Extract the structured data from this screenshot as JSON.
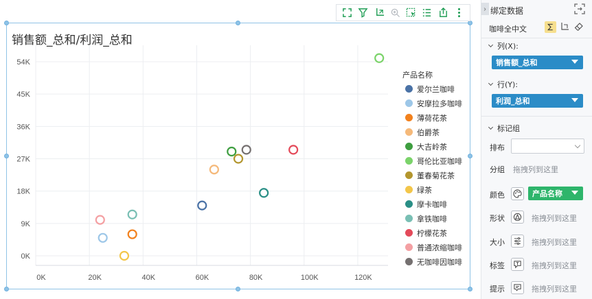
{
  "toolbar": {
    "icons": [
      "expand-icon",
      "filter-icon",
      "axis-swap-icon",
      "zoom-icon",
      "select-icon",
      "list-icon",
      "export-icon",
      "more-icon"
    ]
  },
  "chart_data": {
    "type": "scatter",
    "title": "销售额_总和/利润_总和",
    "xlabel": "",
    "ylabel": "",
    "xlim": [
      0,
      130000
    ],
    "ylim": [
      0,
      54000
    ],
    "x_ticks": [
      "0K",
      "20K",
      "40K",
      "60K",
      "80K",
      "100K",
      "120K"
    ],
    "y_ticks": [
      "0K",
      "9K",
      "18K",
      "27K",
      "36K",
      "45K",
      "54K"
    ],
    "legend_title": "产品名称",
    "legend_position": "right",
    "grid": true,
    "series": [
      {
        "name": "爱尔兰咖啡",
        "color": "#4a72a6",
        "points": [
          [
            62000,
            14000
          ]
        ]
      },
      {
        "name": "安摩拉多咖啡",
        "color": "#9dc7e8",
        "points": [
          [
            25000,
            5000
          ]
        ]
      },
      {
        "name": "薄荷花茶",
        "color": "#f2811d",
        "points": [
          [
            36000,
            6000
          ]
        ]
      },
      {
        "name": "伯爵茶",
        "color": "#f5b97a",
        "points": [
          [
            66500,
            24000
          ]
        ]
      },
      {
        "name": "大吉岭茶",
        "color": "#3e9e40",
        "points": [
          [
            73000,
            29000
          ]
        ]
      },
      {
        "name": "哥伦比亚咖啡",
        "color": "#7bd36a",
        "points": [
          [
            128000,
            55000
          ]
        ]
      },
      {
        "name": "董春菊花茶",
        "color": "#b3962e",
        "points": [
          [
            75500,
            27000
          ]
        ]
      },
      {
        "name": "绿茶",
        "color": "#f3c64a",
        "points": [
          [
            33000,
            0
          ]
        ]
      },
      {
        "name": "摩卡咖啡",
        "color": "#2a8f86",
        "points": [
          [
            85000,
            17500
          ]
        ]
      },
      {
        "name": "拿铁咖啡",
        "color": "#79bfb4",
        "points": [
          [
            36000,
            11500
          ]
        ]
      },
      {
        "name": "柠檬花茶",
        "color": "#e44a5a",
        "points": [
          [
            96000,
            29500
          ]
        ]
      },
      {
        "name": "普通浓缩咖啡",
        "color": "#f4a0a3",
        "points": [
          [
            24000,
            10000
          ]
        ]
      },
      {
        "name": "无咖啡因咖啡",
        "color": "#757070",
        "points": [
          [
            78500,
            29500
          ]
        ]
      }
    ]
  },
  "panel": {
    "header": "绑定数据",
    "dataset": "咖啡全中文",
    "columns_label": "列(X):",
    "columns_field": "销售额_总和",
    "rows_label": "行(Y):",
    "rows_field": "利润_总和",
    "marks_label": "标记组",
    "layout_label": "排布",
    "group_label": "分组",
    "group_placeholder": "拖拽列到这里",
    "color_label": "颜色",
    "color_field": "产品名称",
    "shape_label": "形状",
    "shape_placeholder": "拖拽列到这里",
    "size_label": "大小",
    "size_placeholder": "拖拽列到这里",
    "tag_label": "标签",
    "tag_placeholder": "拖拽列到这里",
    "tip_label": "提示",
    "tip_placeholder": "拖拽列到这里"
  }
}
